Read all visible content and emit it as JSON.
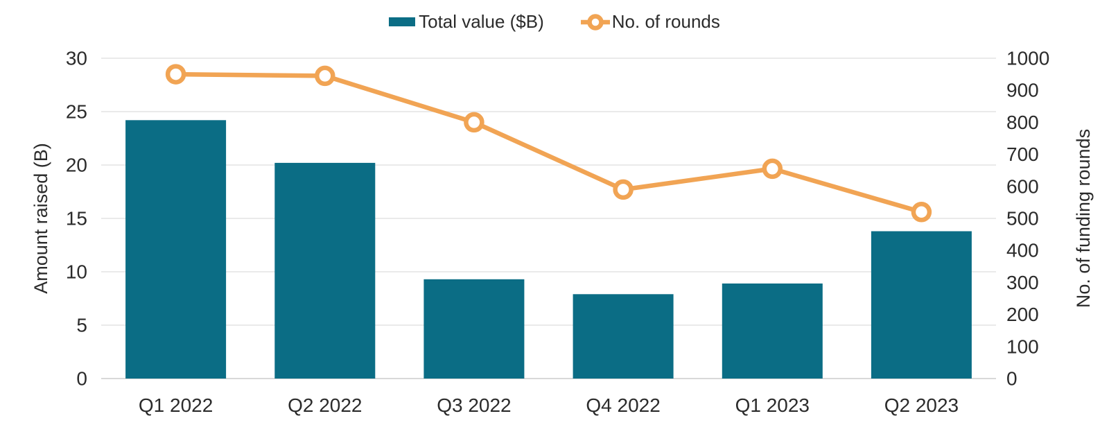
{
  "legend": {
    "items": [
      {
        "label": "Total value ($B)",
        "marker": "bar-swatch-icon"
      },
      {
        "label": "No. of rounds",
        "marker": "line-circle-icon"
      }
    ]
  },
  "chart_data": {
    "type": "combo",
    "categories": [
      "Q1 2022",
      "Q2 2022",
      "Q3 2022",
      "Q4 2022",
      "Q1 2023",
      "Q2 2023"
    ],
    "series": [
      {
        "name": "Total value ($B)",
        "type": "bar",
        "axis": "left",
        "values": [
          24.2,
          20.2,
          9.3,
          7.9,
          8.9,
          13.8
        ],
        "color": "#0B6D85"
      },
      {
        "name": "No. of rounds",
        "type": "line",
        "axis": "right",
        "values": [
          950,
          945,
          800,
          590,
          655,
          520
        ],
        "color": "#F1A454"
      }
    ],
    "left_axis": {
      "title": "Amount raised (B)",
      "min": 0,
      "max": 30,
      "step": 5,
      "ticks": [
        0,
        5,
        10,
        15,
        20,
        25,
        30
      ]
    },
    "right_axis": {
      "title": "No. of funding rounds",
      "min": 0,
      "max": 1000,
      "step": 100,
      "ticks": [
        0,
        100,
        200,
        300,
        400,
        500,
        600,
        700,
        800,
        900,
        1000
      ]
    },
    "grid": true,
    "legend_position": "top",
    "title": "",
    "xlabel": ""
  },
  "colors": {
    "bar": "#0B6D85",
    "line": "#F1A454",
    "marker_fill": "#FFFFFF",
    "grid": "#E3E3E3",
    "baseline": "#D8D8D8",
    "text": "#2B2B2B"
  }
}
